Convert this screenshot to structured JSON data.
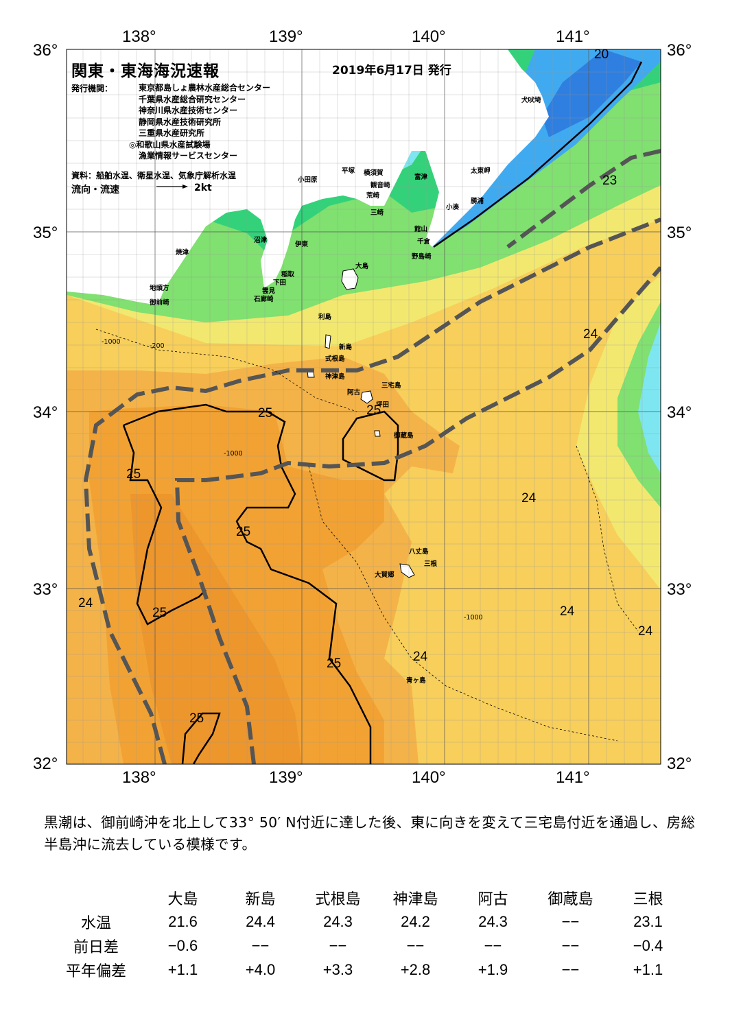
{
  "map": {
    "title": "関東・東海海況速報",
    "issue_date": "2019年6月17日 発行",
    "publisher_label": "発行機関：",
    "publishers": [
      "東京都島しょ農林水産総合センター",
      "千葉県水産総合研究センター",
      "神奈川県水産技術センター",
      "静岡県水産技術研究所",
      "三重県水産研究所",
      "◎和歌山県水産試験場",
      "漁業情報サービスセンター"
    ],
    "sources": "資料：船舶水温、衛星水温、気象庁解析水温",
    "flow_label": "流向・流速",
    "flow_scale": "2kt",
    "lon_labels": [
      "138°",
      "139°",
      "140°",
      "141°"
    ],
    "lat_labels": [
      "36°",
      "35°",
      "34°",
      "33°",
      "32°"
    ],
    "places": [
      "犬吠埼",
      "太東岬",
      "勝浦",
      "小湊",
      "富津",
      "館山",
      "千倉",
      "野島崎",
      "横須賀",
      "観音崎",
      "荒崎",
      "三崎",
      "平塚",
      "小田原",
      "沼津",
      "伊東",
      "稲取",
      "下田",
      "雲見",
      "石廊崎",
      "焼津",
      "地頭方",
      "御前崎",
      "大島",
      "利島",
      "新島",
      "式根島",
      "神津島",
      "三宅島",
      "阿古",
      "坪田",
      "御蔵島",
      "八丈島",
      "三根",
      "大賀郷",
      "青ヶ島"
    ],
    "isotherms": [
      "20",
      "23",
      "24",
      "24",
      "24",
      "24",
      "24",
      "24",
      "25",
      "25",
      "25",
      "25",
      "25",
      "25",
      "25"
    ],
    "depth_labels": [
      "-200",
      "-1000"
    ],
    "colors": {
      "t19": "#2f7fe0",
      "t20": "#40aaf0",
      "t21": "#7ee6f0",
      "t22": "#33d27a",
      "t22b": "#80e070",
      "t23": "#f2e870",
      "t24": "#f7cf5a",
      "t24b": "#f4b348",
      "t25": "#f2a233",
      "t25b": "#ed962c",
      "kuroshio_axis": "#555555",
      "land": "#ffffff"
    }
  },
  "comment": "黒潮は、御前崎沖を北上して33° 50′ N付近に達した後、東に向きを変えて三宅島付近を通過し、房総半島沖に流去している模様です。",
  "table": {
    "stations": [
      "大島",
      "新島",
      "式根島",
      "神津島",
      "阿古",
      "御蔵島",
      "三根"
    ],
    "rows": [
      {
        "label": "水温",
        "values": [
          "21.6",
          "24.4",
          "24.3",
          "24.2",
          "24.3",
          "−−",
          "23.1"
        ]
      },
      {
        "label": "前日差",
        "values": [
          "−0.6",
          "−−",
          "−−",
          "−−",
          "−−",
          "−−",
          "−0.4"
        ]
      },
      {
        "label": "平年偏差",
        "values": [
          "+1.1",
          "+4.0",
          "+3.3",
          "+2.8",
          "+1.9",
          "−−",
          "+1.1"
        ]
      }
    ]
  }
}
